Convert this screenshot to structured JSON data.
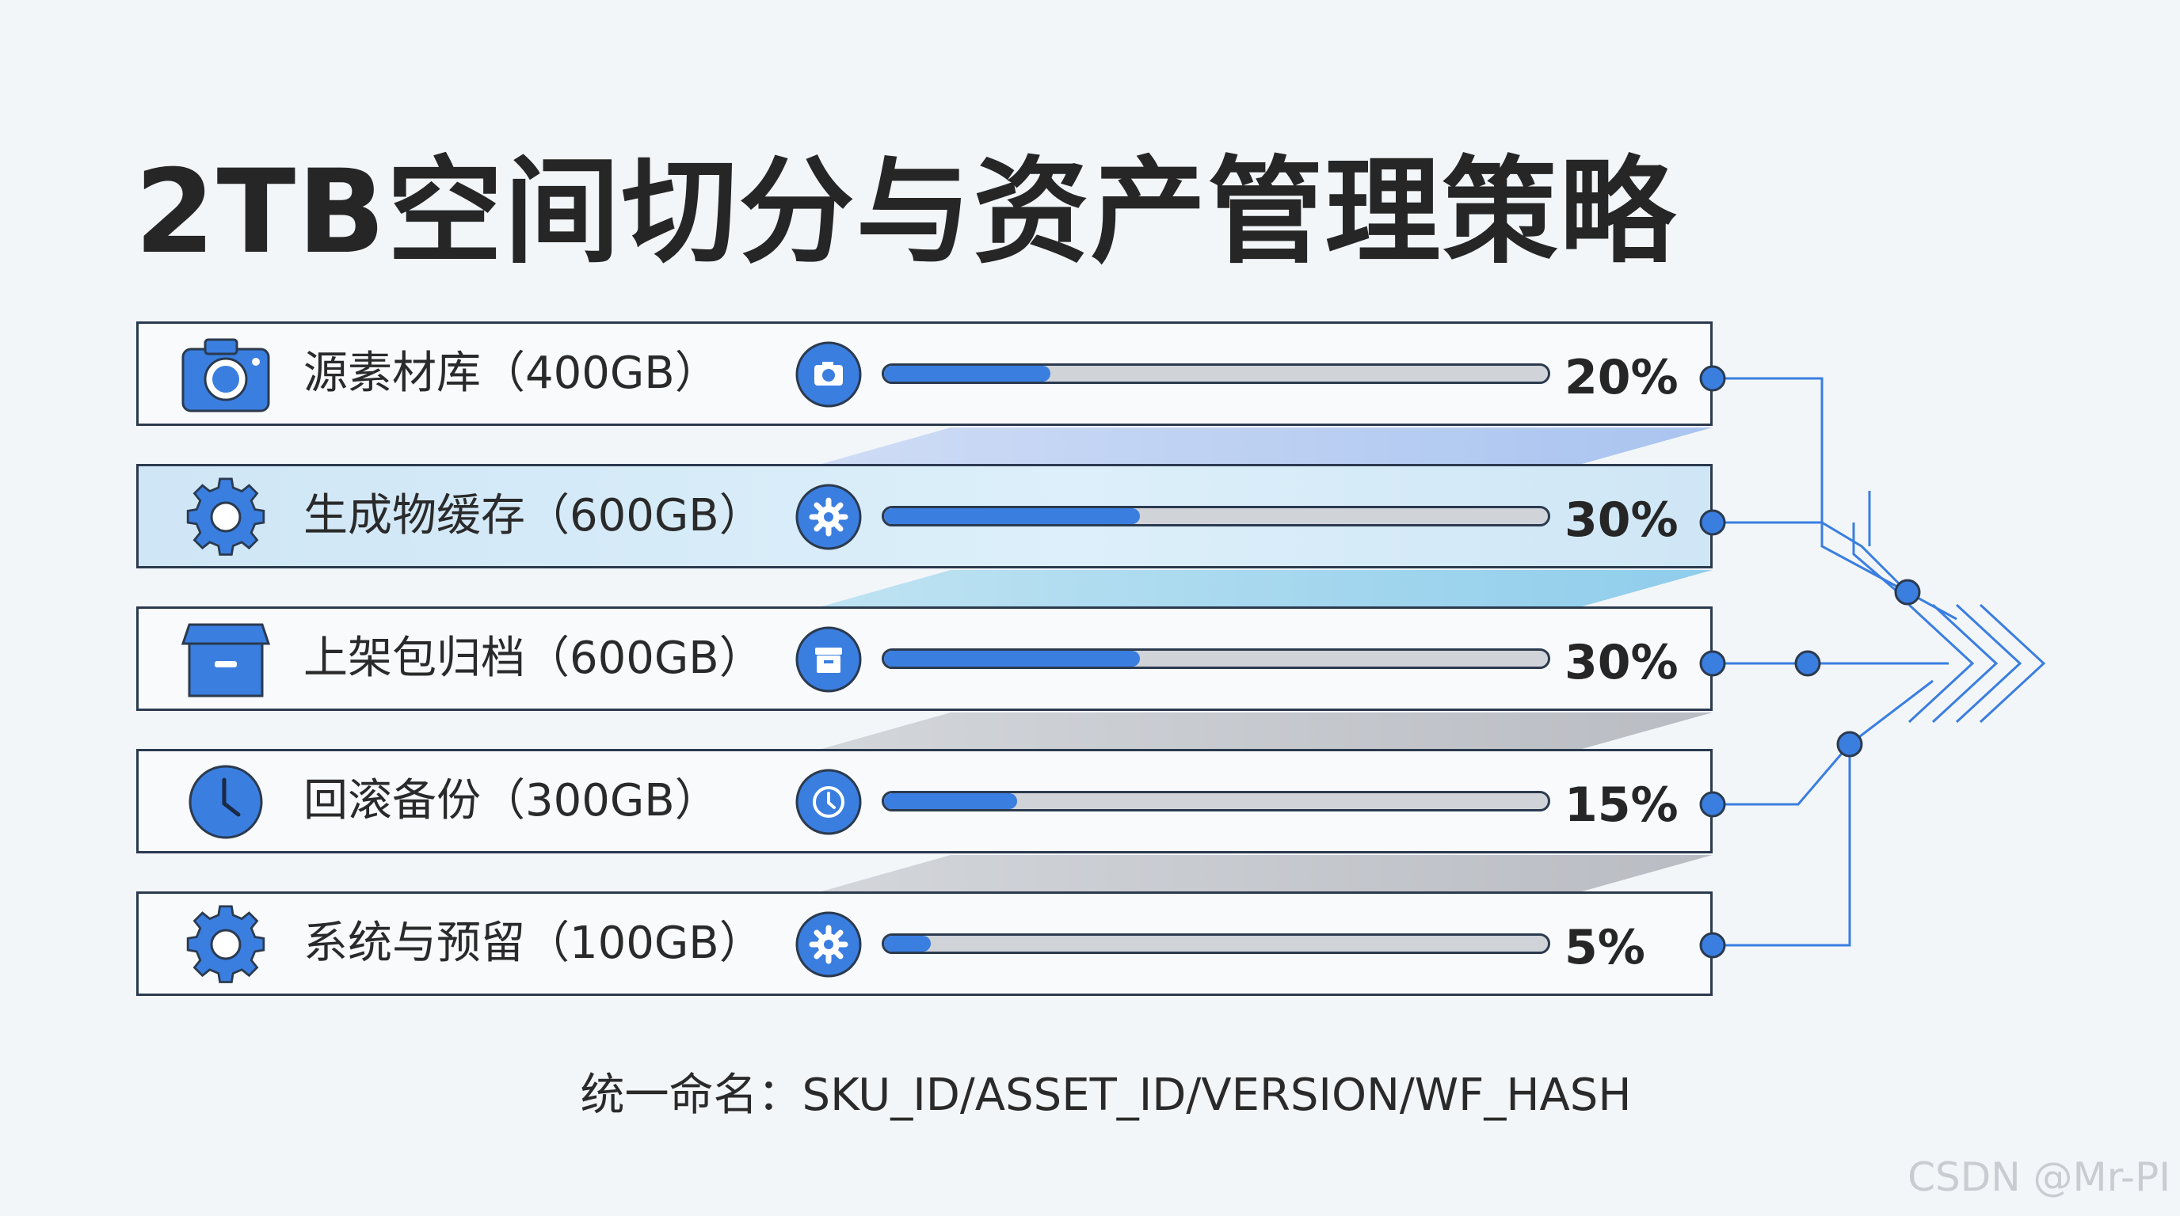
{
  "title": "2TB空间切分与资产管理策略",
  "accent_color": "#3a7ee0",
  "rows": [
    {
      "label": "源素材库（400GB）",
      "percent": "20%",
      "fill": 0.25,
      "icon": "camera-icon",
      "badge": "camera-badge-icon"
    },
    {
      "label": "生成物缓存（600GB）",
      "percent": "30%",
      "fill": 0.385,
      "icon": "gear-icon",
      "badge": "gear-badge-icon"
    },
    {
      "label": "上架包归档（600GB）",
      "percent": "30%",
      "fill": 0.385,
      "icon": "archive-box-icon",
      "badge": "archive-badge-icon"
    },
    {
      "label": "回滚备份（300GB）",
      "percent": "15%",
      "fill": 0.2,
      "icon": "clock-icon",
      "badge": "clock-badge-icon"
    },
    {
      "label": "系统与预留（100GB）",
      "percent": "5%",
      "fill": 0.07,
      "icon": "gear-icon",
      "badge": "gear-badge-icon"
    }
  ],
  "footer": "统一命名：SKU_ID/ASSET_ID/VERSION/WF_HASH",
  "watermark": "CSDN @Mr-PI"
}
